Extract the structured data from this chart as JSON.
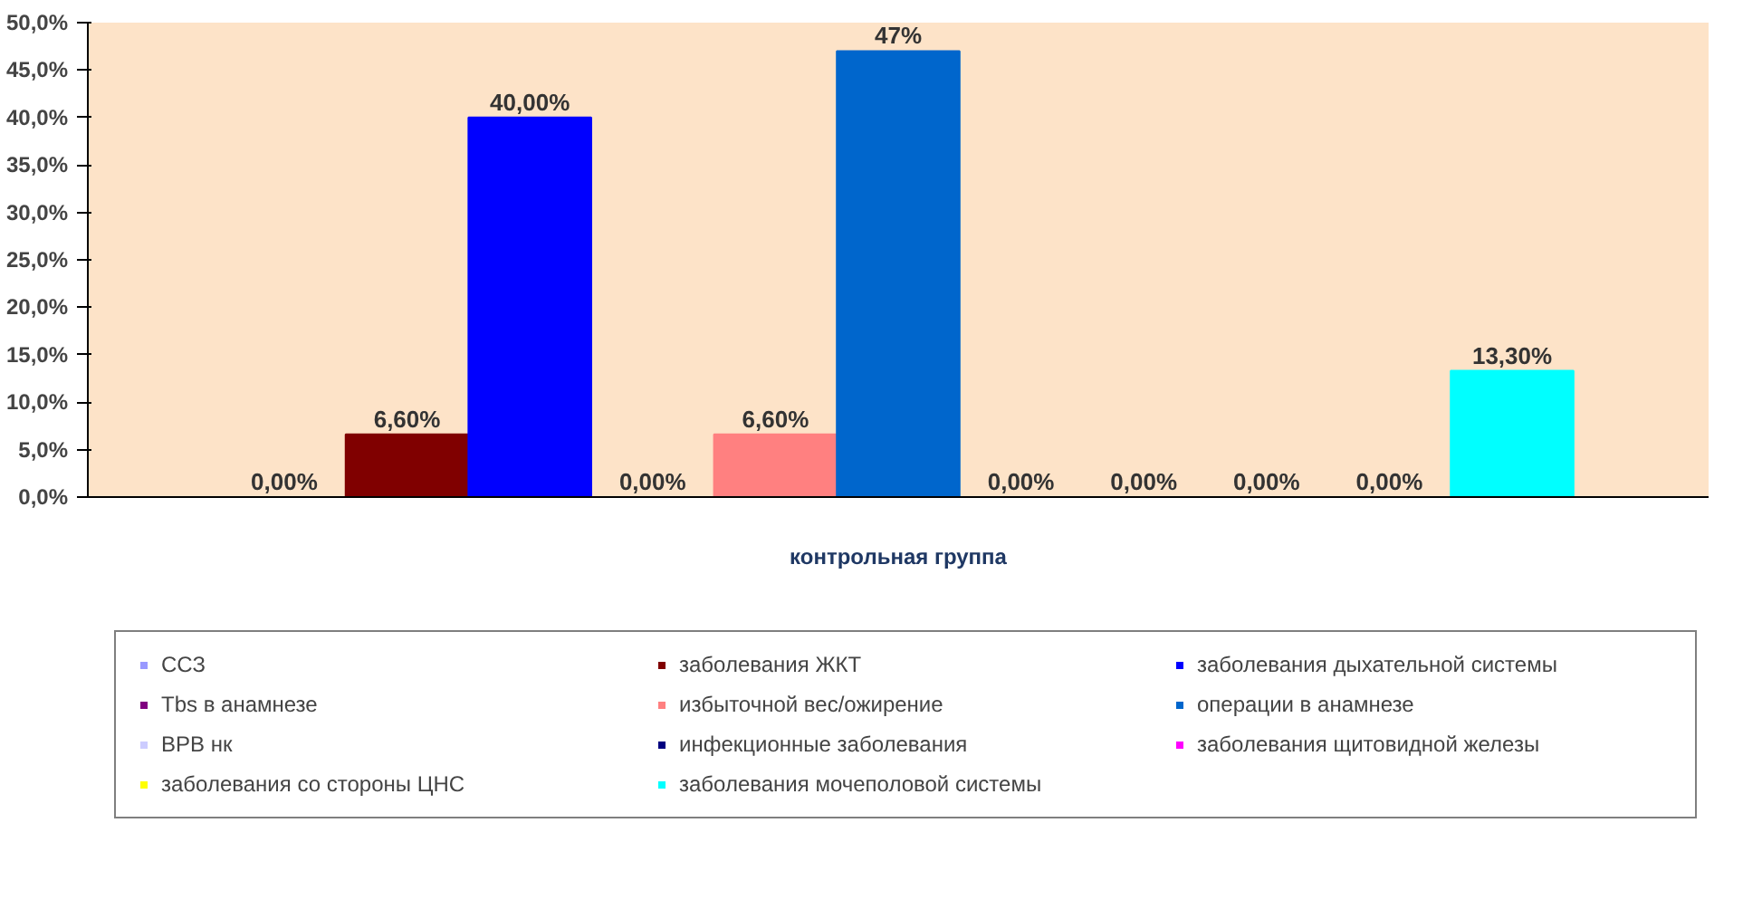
{
  "chart_data": {
    "type": "bar",
    "categories": [
      "контрольная группа"
    ],
    "series": [
      {
        "name": "ССЗ",
        "color": "#9999ff",
        "values": [
          0
        ],
        "value_labels": [
          "0,00%"
        ]
      },
      {
        "name": "заболевания ЖКТ",
        "color": "#800000",
        "values": [
          6.6
        ],
        "value_labels": [
          "6,60%"
        ]
      },
      {
        "name": "заболевания дыхательной системы",
        "color": "#0000ff",
        "values": [
          40
        ],
        "value_labels": [
          "40,00%"
        ]
      },
      {
        "name": "Tbs в анамнезе",
        "color": "#800080",
        "values": [
          0
        ],
        "value_labels": [
          "0,00%"
        ]
      },
      {
        "name": "избыточной вес/ожирение",
        "color": "#ff8080",
        "values": [
          6.6
        ],
        "value_labels": [
          "6,60%"
        ]
      },
      {
        "name": "операции в анамнезе",
        "color": "#0066cc",
        "values": [
          47
        ],
        "value_labels": [
          "47%"
        ]
      },
      {
        "name": "ВРВ нк",
        "color": "#ccccff",
        "values": [
          0
        ],
        "value_labels": [
          "0,00%"
        ]
      },
      {
        "name": "инфекционные заболевания",
        "color": "#000080",
        "values": [
          0
        ],
        "value_labels": [
          "0,00%"
        ]
      },
      {
        "name": "заболевания щитовидной железы",
        "color": "#ff00ff",
        "values": [
          0
        ],
        "value_labels": [
          "0,00%"
        ]
      },
      {
        "name": "заболевания со стороны ЦНС",
        "color": "#ffff00",
        "values": [
          0
        ],
        "value_labels": [
          "0,00%"
        ]
      },
      {
        "name": "заболевания мочеполовой системы",
        "color": "#00ffff",
        "values": [
          13.3
        ],
        "value_labels": [
          "13,30%"
        ]
      }
    ],
    "ylim": [
      0,
      50
    ],
    "yticks": [
      {
        "value": 0,
        "label": "0,0%"
      },
      {
        "value": 5,
        "label": "5,0%"
      },
      {
        "value": 10,
        "label": "10,0%"
      },
      {
        "value": 15,
        "label": "15,0%"
      },
      {
        "value": 20,
        "label": "20,0%"
      },
      {
        "value": 25,
        "label": "25,0%"
      },
      {
        "value": 30,
        "label": "30,0%"
      },
      {
        "value": 35,
        "label": "35,0%"
      },
      {
        "value": 40,
        "label": "40,0%"
      },
      {
        "value": 45,
        "label": "45,0%"
      },
      {
        "value": 50,
        "label": "50,0%"
      }
    ],
    "legend": "bottom"
  }
}
